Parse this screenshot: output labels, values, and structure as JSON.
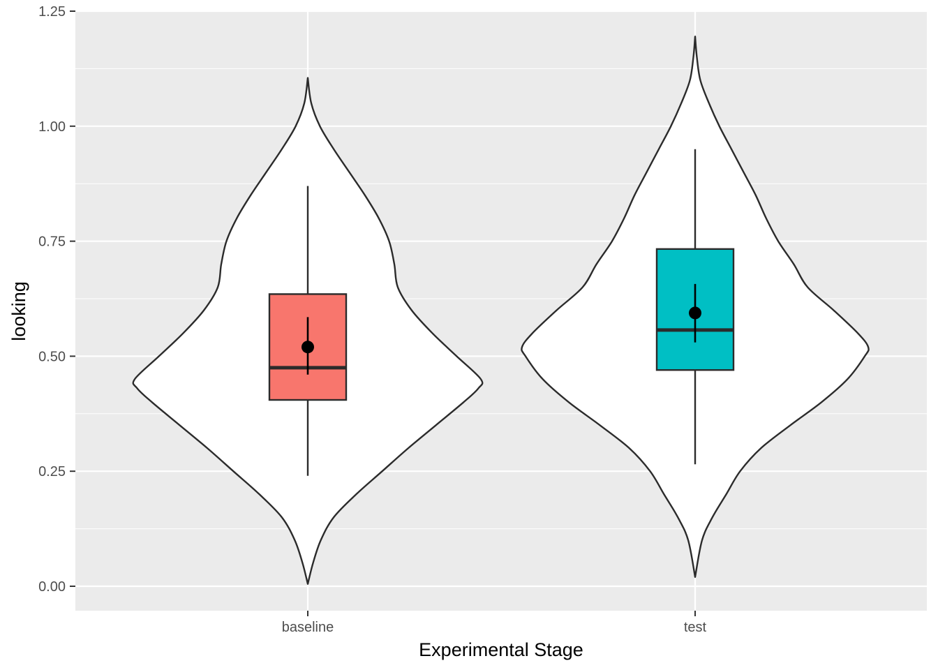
{
  "chart_data": {
    "type": "violin",
    "xlabel": "Experimental Stage",
    "ylabel": "looking",
    "ylim": [
      -0.055,
      1.25
    ],
    "yticks": [
      0.0,
      0.25,
      0.5,
      0.75,
      1.0,
      1.25
    ],
    "ytick_labels": [
      "0.00",
      "0.25",
      "0.50",
      "0.75",
      "1.00",
      "1.25"
    ],
    "grid": true,
    "legend": "none",
    "categories": [
      "baseline",
      "test"
    ],
    "groups": [
      {
        "category": "baseline",
        "fill": "#F8766D",
        "box": {
          "whisker_low": 0.24,
          "q1": 0.405,
          "median": 0.475,
          "q3": 0.635,
          "whisker_high": 0.87
        },
        "mean": 0.52,
        "mean_ci": [
          0.46,
          0.585
        ],
        "violin": {
          "y_min": 0.005,
          "y_max": 1.105,
          "density": [
            [
              0.005,
              0.0
            ],
            [
              0.05,
              0.03
            ],
            [
              0.1,
              0.075
            ],
            [
              0.15,
              0.15
            ],
            [
              0.2,
              0.28
            ],
            [
              0.25,
              0.43
            ],
            [
              0.3,
              0.58
            ],
            [
              0.35,
              0.74
            ],
            [
              0.4,
              0.9
            ],
            [
              0.43,
              0.985
            ],
            [
              0.45,
              1.0
            ],
            [
              0.5,
              0.86
            ],
            [
              0.55,
              0.72
            ],
            [
              0.6,
              0.6
            ],
            [
              0.65,
              0.52
            ],
            [
              0.7,
              0.5
            ],
            [
              0.75,
              0.47
            ],
            [
              0.8,
              0.41
            ],
            [
              0.85,
              0.33
            ],
            [
              0.9,
              0.24
            ],
            [
              0.95,
              0.15
            ],
            [
              1.0,
              0.07
            ],
            [
              1.05,
              0.02
            ],
            [
              1.105,
              0.0
            ]
          ]
        }
      },
      {
        "category": "test",
        "fill": "#00BFC4",
        "box": {
          "whisker_low": 0.265,
          "q1": 0.47,
          "median": 0.557,
          "q3": 0.733,
          "whisker_high": 0.95
        },
        "mean": 0.594,
        "mean_ci": [
          0.53,
          0.657
        ],
        "violin": {
          "y_min": 0.02,
          "y_max": 1.195,
          "density": [
            [
              0.02,
              0.0
            ],
            [
              0.1,
              0.04
            ],
            [
              0.15,
              0.1
            ],
            [
              0.2,
              0.18
            ],
            [
              0.25,
              0.26
            ],
            [
              0.3,
              0.38
            ],
            [
              0.35,
              0.55
            ],
            [
              0.4,
              0.73
            ],
            [
              0.45,
              0.88
            ],
            [
              0.5,
              0.98
            ],
            [
              0.52,
              1.0
            ],
            [
              0.55,
              0.94
            ],
            [
              0.6,
              0.8
            ],
            [
              0.65,
              0.65
            ],
            [
              0.7,
              0.57
            ],
            [
              0.75,
              0.48
            ],
            [
              0.8,
              0.41
            ],
            [
              0.85,
              0.35
            ],
            [
              0.9,
              0.28
            ],
            [
              0.95,
              0.21
            ],
            [
              1.0,
              0.14
            ],
            [
              1.05,
              0.08
            ],
            [
              1.1,
              0.03
            ],
            [
              1.15,
              0.01
            ],
            [
              1.195,
              0.0
            ]
          ]
        }
      }
    ]
  }
}
